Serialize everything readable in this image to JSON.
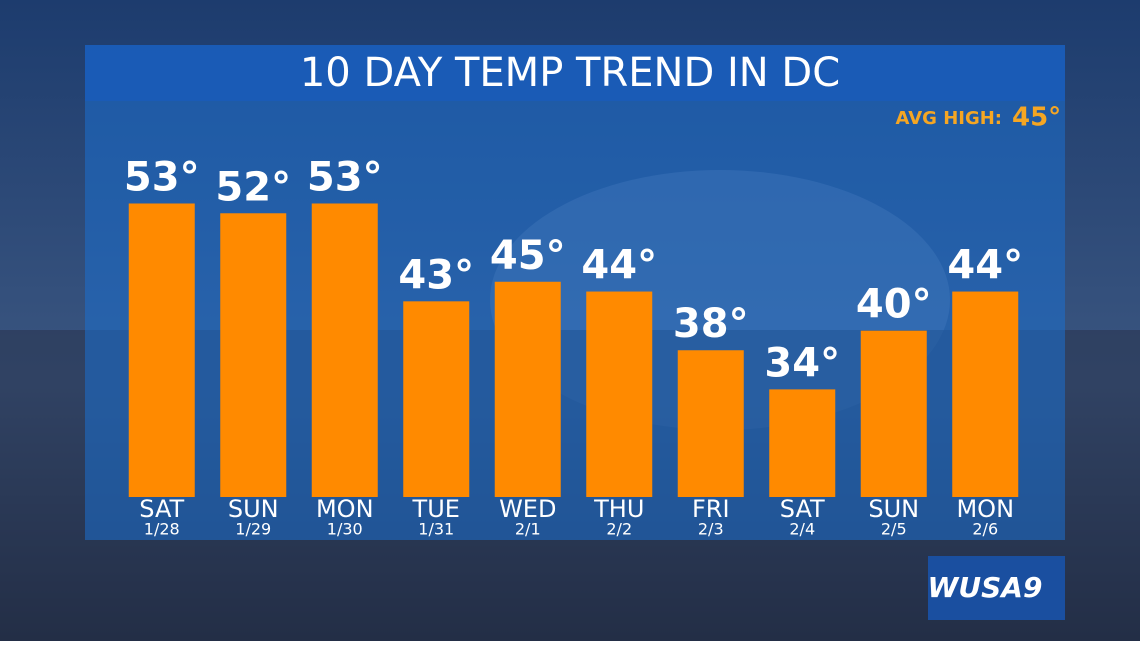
{
  "chart_data": {
    "type": "bar",
    "title": "10 DAY TEMP TREND IN DC",
    "avg_high_label": "AVG HIGH:",
    "avg_high": "45°",
    "categories": [
      "SAT",
      "SUN",
      "MON",
      "TUE",
      "WED",
      "THU",
      "FRI",
      "SAT",
      "SUN",
      "MON"
    ],
    "dates": [
      "1/28",
      "1/29",
      "1/30",
      "1/31",
      "2/1",
      "2/2",
      "2/3",
      "2/4",
      "2/5",
      "2/6"
    ],
    "values": [
      53,
      52,
      53,
      43,
      45,
      44,
      38,
      34,
      40,
      44
    ],
    "value_labels": [
      "53°",
      "52°",
      "53°",
      "43°",
      "45°",
      "44°",
      "38°",
      "34°",
      "40°",
      "44°"
    ],
    "color": "#ff8a00",
    "ylim": [
      23,
      60
    ]
  },
  "logo": "WUSA9"
}
